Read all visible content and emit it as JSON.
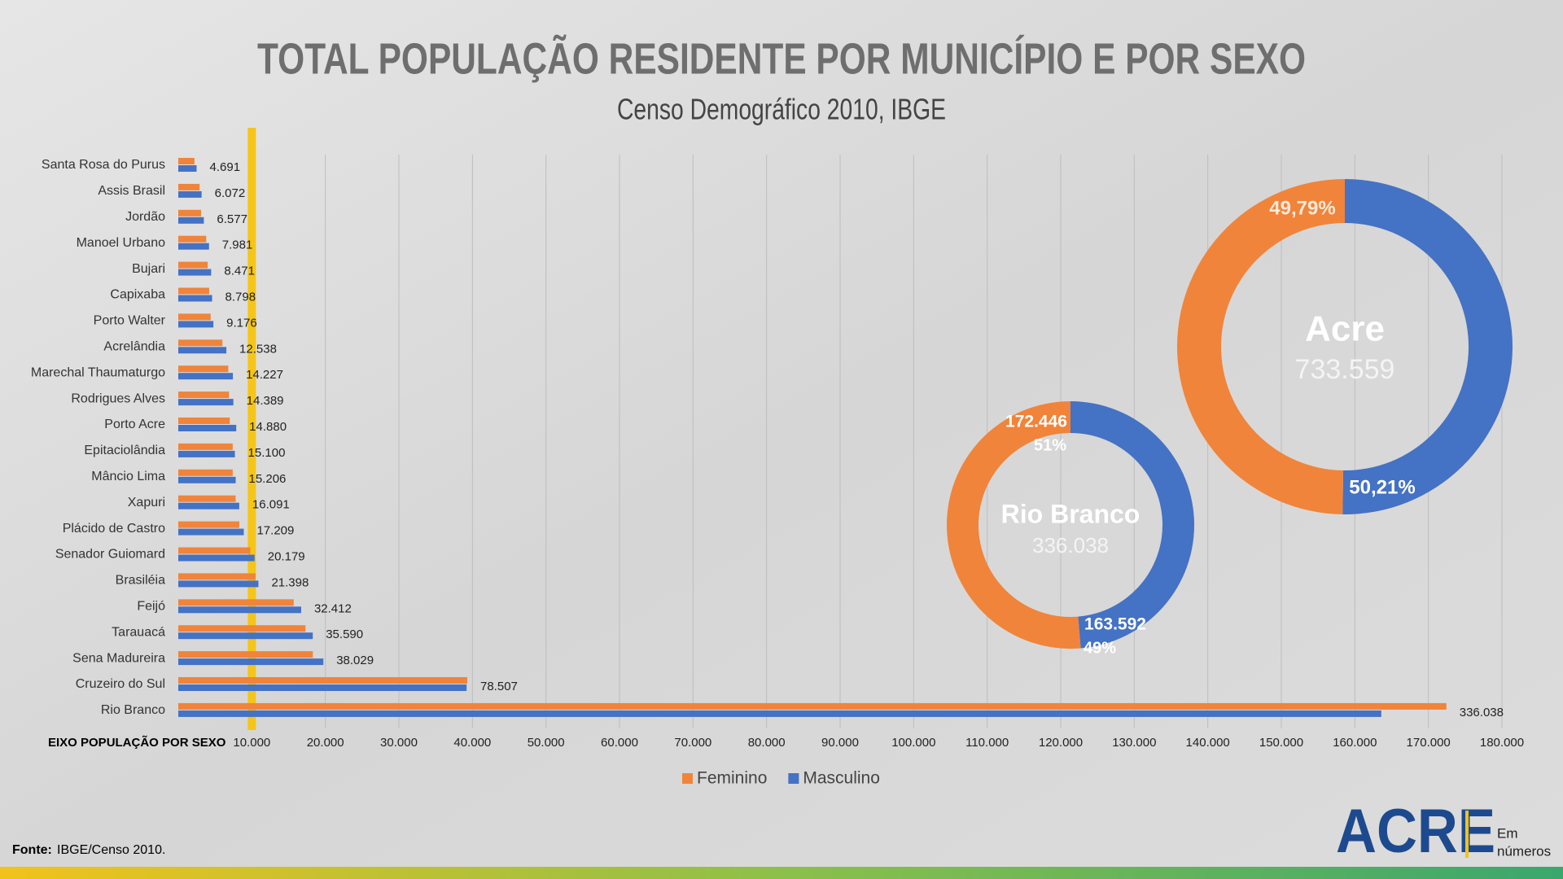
{
  "chart_data": [
    {
      "type": "bar",
      "orientation": "horizontal",
      "title": "TOTAL POPULAÇÃO RESIDENTE POR MUNICÍPIO E POR SEXO",
      "subtitle": "Censo Demográfico 2010, IBGE",
      "x_label": "EIXO POPULAÇÃO POR SEXO",
      "categories": [
        "Santa Rosa do Purus",
        "Assis Brasil",
        "Jordão",
        "Manoel Urbano",
        "Bujari",
        "Capixaba",
        "Porto Walter",
        "Acrelândia",
        "Marechal Thaumaturgo",
        "Rodrigues Alves",
        "Porto Acre",
        "Epitaciolândia",
        "Mâncio Lima",
        "Xapuri",
        "Plácido de Castro",
        "Senador Guiomard",
        "Brasiléia",
        "Feijó",
        "Tarauacá",
        "Sena Madureira",
        "Cruzeiro do Sul",
        "Rio Branco"
      ],
      "series": [
        {
          "name": "Feminino",
          "color": "#f0843a",
          "values": [
            2200,
            2900,
            3100,
            3800,
            4000,
            4200,
            4400,
            6000,
            6800,
            6900,
            7000,
            7400,
            7400,
            7800,
            8300,
            9800,
            10500,
            15700,
            17300,
            18300,
            39300,
            172446
          ]
        },
        {
          "name": "Masculino",
          "color": "#4472c4",
          "values": [
            2491,
            3172,
            3477,
            4181,
            4471,
            4598,
            4776,
            6538,
            7427,
            7489,
            7880,
            7700,
            7806,
            8291,
            8909,
            10379,
            10898,
            16712,
            18290,
            19729,
            39207,
            163592
          ]
        }
      ],
      "totals": [
        4691,
        6072,
        6577,
        7981,
        8471,
        8798,
        9176,
        12538,
        14227,
        14389,
        14880,
        15100,
        15206,
        16091,
        17209,
        20179,
        21398,
        32412,
        35590,
        38029,
        78507,
        336038
      ],
      "total_labels": [
        "4.691",
        "6.072",
        "6.577",
        "7.981",
        "8.471",
        "8.798",
        "9.176",
        "12.538",
        "14.227",
        "14.389",
        "14.880",
        "15.100",
        "15.206",
        "16.091",
        "17.209",
        "20.179",
        "21.398",
        "32.412",
        "35.590",
        "38.029",
        "78.507",
        "336.038"
      ],
      "xlim": [
        0,
        180000
      ],
      "xticks": [
        {
          "value": 10000,
          "label": "10.000"
        },
        {
          "value": 20000,
          "label": "20.000"
        },
        {
          "value": 30000,
          "label": "30.000"
        },
        {
          "value": 40000,
          "label": "40.000"
        },
        {
          "value": 50000,
          "label": "50.000"
        },
        {
          "value": 60000,
          "label": "60.000"
        },
        {
          "value": 70000,
          "label": "70.000"
        },
        {
          "value": 80000,
          "label": "80.000"
        },
        {
          "value": 90000,
          "label": "90.000"
        },
        {
          "value": 100000,
          "label": "100.000"
        },
        {
          "value": 110000,
          "label": "110.000"
        },
        {
          "value": 120000,
          "label": "120.000"
        },
        {
          "value": 130000,
          "label": "130.000"
        },
        {
          "value": 140000,
          "label": "140.000"
        },
        {
          "value": 150000,
          "label": "150.000"
        },
        {
          "value": 160000,
          "label": "160.000"
        },
        {
          "value": 170000,
          "label": "170.000"
        },
        {
          "value": 180000,
          "label": "180.000"
        }
      ],
      "reference_x": 10000,
      "reference_color": "#f5c518",
      "grid": true,
      "legend": "bottom"
    },
    {
      "type": "pie",
      "donut": true,
      "title": "Acre",
      "total": 733559,
      "total_label": "733.559",
      "values": [
        49.79,
        50.21
      ],
      "value_labels": [
        "49,79%",
        "50,21%"
      ],
      "colors": [
        "#f0843a",
        "#4472c4"
      ]
    },
    {
      "type": "pie",
      "donut": true,
      "title": "Rio Branco",
      "total": 336038,
      "total_label": "336.038",
      "values": [
        172446,
        163592
      ],
      "value_labels": [
        "172.446",
        "163.592"
      ],
      "percents": [
        51,
        49
      ],
      "percent_labels": [
        "51%",
        "49%"
      ],
      "colors": [
        "#f0843a",
        "#4472c4"
      ]
    }
  ],
  "footer": {
    "source_label": "Fonte:",
    "source": "IBGE/Censo 2010."
  },
  "logo": {
    "name": "ACRE",
    "line1": "Em",
    "line2": "números"
  }
}
